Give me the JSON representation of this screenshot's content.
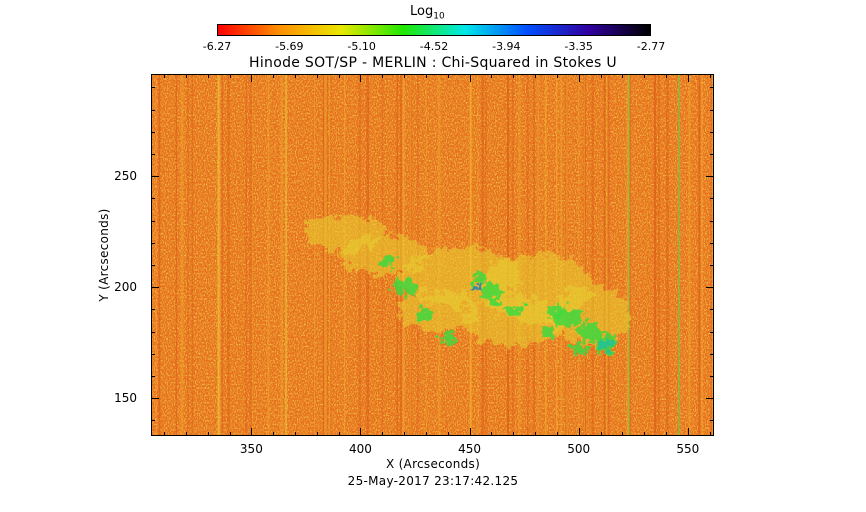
{
  "colorbar": {
    "title": "Log",
    "title_subscript": "10",
    "ticks": [
      "-6.27",
      "-5.69",
      "-5.10",
      "-4.52",
      "-3.94",
      "-3.35",
      "-2.77"
    ],
    "colors": [
      "#ff0000",
      "#ff9000",
      "#e8e800",
      "#20e800",
      "#00e8e8",
      "#0050ff",
      "#3000a0",
      "#000000"
    ]
  },
  "title": "Hinode SOT/SP - MERLIN : Chi-Squared in Stokes U",
  "x_axis": {
    "label": "X (Arcseconds)",
    "ticks": [
      "350",
      "400",
      "450",
      "500",
      "550"
    ],
    "range": [
      304,
      562
    ]
  },
  "y_axis": {
    "label": "Y (Arcseconds)",
    "ticks": [
      "150",
      "200",
      "250"
    ],
    "range": [
      133,
      296
    ]
  },
  "timestamp": "25-May-2017 23:17:42.125"
}
